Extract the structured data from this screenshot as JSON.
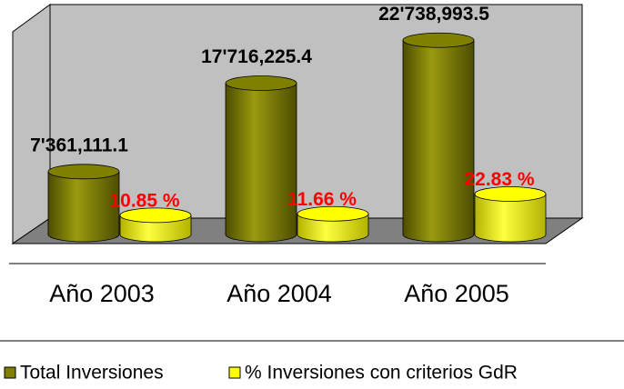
{
  "chart_data": {
    "type": "bar",
    "categories": [
      "Año 2003",
      "Año 2004",
      "Año 2005"
    ],
    "series": [
      {
        "name": "Total Inversiones",
        "color": "#808000",
        "values": [
          7361111.1,
          17716225.4,
          22738993.5
        ],
        "value_labels": [
          "7'361,111.1",
          "17'716,225.4",
          "22'738,993.5"
        ]
      },
      {
        "name": "% Inversiones con criterios GdR",
        "color": "#ffff00",
        "axis": "y2",
        "values": [
          10.85,
          11.66,
          22.83
        ],
        "value_labels": [
          "10.85 %",
          "11.66 %",
          "22.83 %"
        ]
      }
    ],
    "legend": "bottom"
  }
}
